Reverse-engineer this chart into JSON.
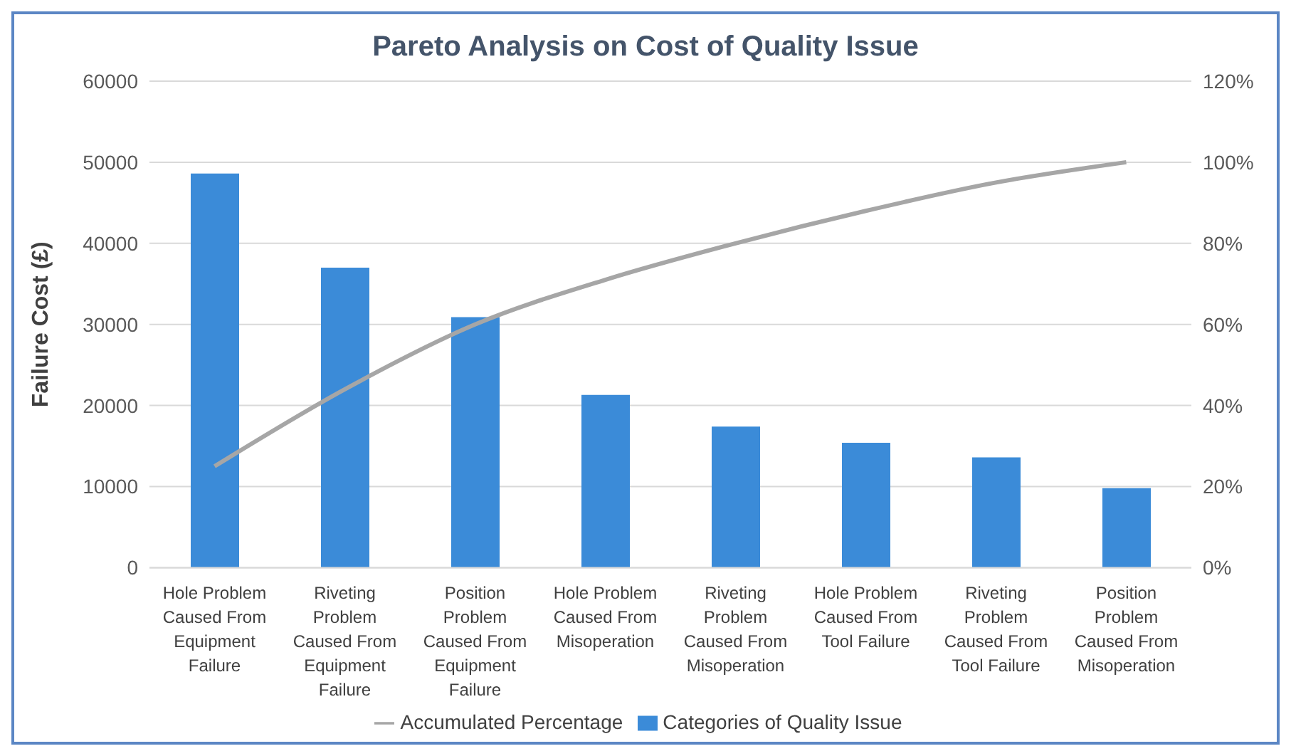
{
  "chart_data": {
    "type": "bar",
    "title": "Pareto Analysis on Cost of Quality Issue",
    "ylabel": "Failure Cost (£)",
    "categories": [
      "Hole Problem Caused From Equipment Failure",
      "Riveting Problem Caused From Equipment Failure",
      "Position Problem Caused From Equipment Failure",
      "Hole Problem Caused From Misoperation",
      "Riveting Problem Caused From Misoperation",
      "Hole Problem Caused From Tool Failure",
      "Riveting Problem Caused From Tool Failure",
      "Position Problem Caused From Misoperation"
    ],
    "series": [
      {
        "name": "Categories of Quality Issue",
        "color": "#3b8bd8",
        "values": [
          48600,
          37000,
          30900,
          21300,
          17400,
          15400,
          13600,
          9800
        ]
      },
      {
        "name": "Accumulated Percentage",
        "type": "line",
        "axis": "y2",
        "color": "#a6a6a6",
        "values": [
          25,
          44,
          60,
          71,
          80,
          88,
          95,
          100
        ]
      }
    ],
    "ylim": [
      0,
      60000
    ],
    "yticks": [
      0,
      10000,
      20000,
      30000,
      40000,
      50000,
      60000
    ],
    "y2lim": [
      0,
      120
    ],
    "y2ticks": [
      {
        "value": 0,
        "label": "0%"
      },
      {
        "value": 20,
        "label": "20%"
      },
      {
        "value": 40,
        "label": "40%"
      },
      {
        "value": 60,
        "label": "60%"
      },
      {
        "value": 80,
        "label": "80%"
      },
      {
        "value": 100,
        "label": "100%"
      },
      {
        "value": 120,
        "label": "120%"
      }
    ],
    "grid": "y",
    "legend": "bottom",
    "marker": "none",
    "line_style": "solid"
  }
}
